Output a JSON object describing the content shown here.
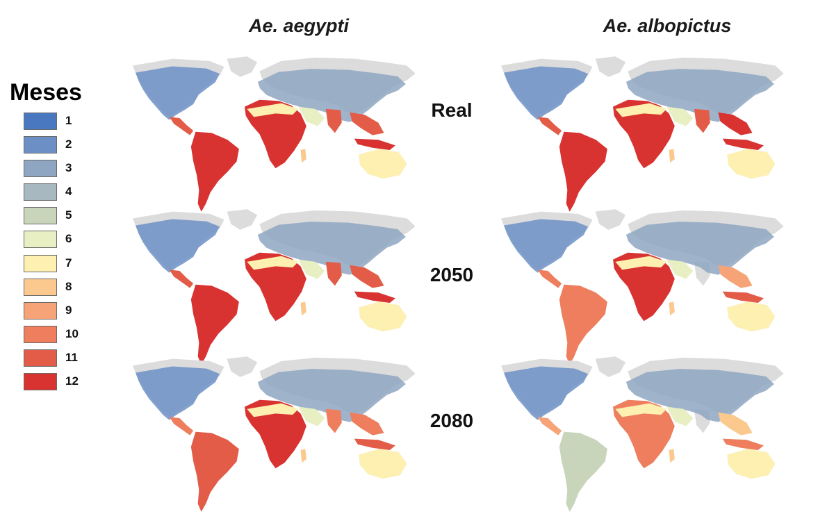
{
  "columns": [
    "Ae. aegypti",
    "Ae. albopictus"
  ],
  "rows": [
    "Real",
    "2050",
    "2080"
  ],
  "legend": {
    "title": "Meses",
    "items": [
      {
        "label": "1",
        "color": "#4a78c0"
      },
      {
        "label": "2",
        "color": "#6c90c6"
      },
      {
        "label": "3",
        "color": "#8ea6c2"
      },
      {
        "label": "4",
        "color": "#a8b8c0"
      },
      {
        "label": "5",
        "color": "#c8d5bb"
      },
      {
        "label": "6",
        "color": "#e8efc2"
      },
      {
        "label": "7",
        "color": "#fdf0b0"
      },
      {
        "label": "8",
        "color": "#fbc98e"
      },
      {
        "label": "9",
        "color": "#f6a477"
      },
      {
        "label": "10",
        "color": "#ee7e5d"
      },
      {
        "label": "11",
        "color": "#e35c48"
      },
      {
        "label": "12",
        "color": "#d93331"
      }
    ]
  },
  "colors": {
    "land_unsuitable": "#dcdcdc",
    "background": "#ffffff"
  }
}
